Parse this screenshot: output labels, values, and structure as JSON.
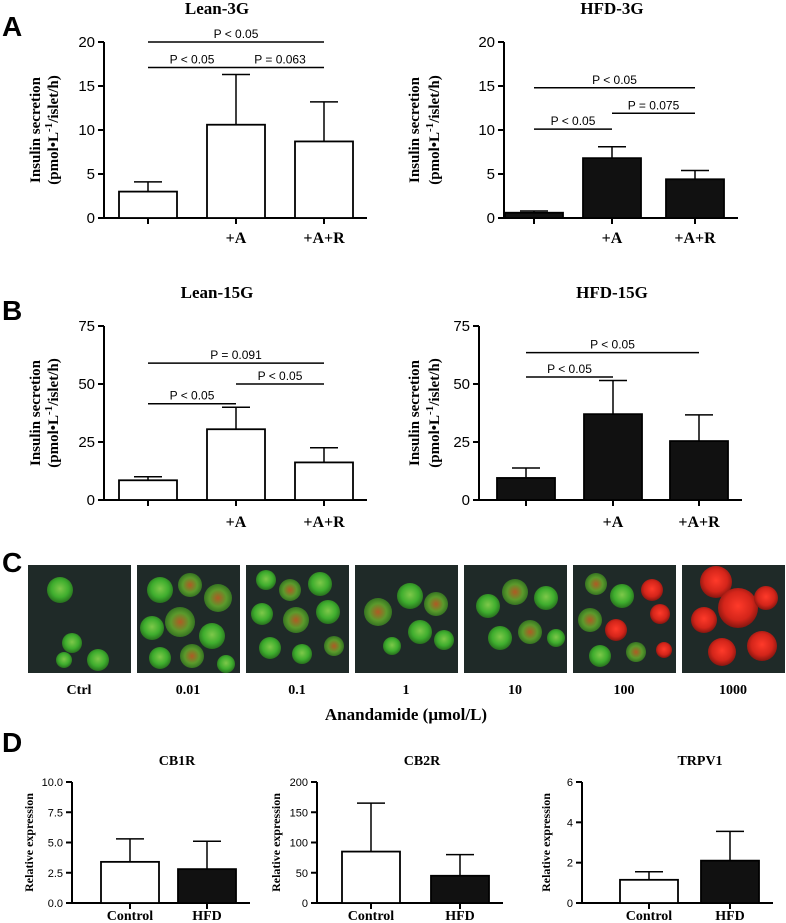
{
  "panel_labels": [
    "A",
    "B",
    "C",
    "D"
  ],
  "colors": {
    "control_bar": "#ffffff",
    "treated_bar": "#111111",
    "axis": "#000000",
    "micro_bg": "#1f2a28",
    "viable": "#3fae2e",
    "dead": "#c41e16"
  },
  "chart_data": [
    {
      "type": "bar",
      "panel": "A",
      "title": "Lean-3G",
      "categories": [
        "",
        "+A",
        "+A+R"
      ],
      "values": [
        3.0,
        10.6,
        8.7
      ],
      "errors": [
        1.1,
        5.7,
        4.5
      ],
      "ylim": [
        0,
        20
      ],
      "yticks": [
        "0",
        "5",
        "10",
        "15",
        "20"
      ],
      "ylabel_line1": "Insulin secretion",
      "ylabel_line2": "(pmol•L",
      "ylabel_sup": "-1",
      "ylabel_line2b": "/islet/h)",
      "bar_fill": "white",
      "annotations": [
        {
          "from": 0,
          "to": 2,
          "level": 20.0,
          "text": "P < 0.05"
        },
        {
          "from": 0,
          "to": 1,
          "level": 17.1,
          "text": "P < 0.05"
        },
        {
          "from": 1,
          "to": 2,
          "level": 17.1,
          "text": "P = 0.063"
        }
      ]
    },
    {
      "type": "bar",
      "panel": "A",
      "title": "HFD-3G",
      "categories": [
        "",
        "+A",
        "+A+R"
      ],
      "values": [
        0.6,
        6.8,
        4.4
      ],
      "errors": [
        0.2,
        1.3,
        1.0
      ],
      "ylim": [
        0,
        20
      ],
      "yticks": [
        "0",
        "5",
        "10",
        "15",
        "20"
      ],
      "ylabel_line1": "Insulin secretion",
      "ylabel_line2": "(pmol•L",
      "ylabel_sup": "-1",
      "ylabel_line2b": "/islet/h)",
      "bar_fill": "black",
      "annotations": [
        {
          "from": 0,
          "to": 2,
          "level": 14.8,
          "text": "P < 0.05"
        },
        {
          "from": 0,
          "to": 1,
          "level": 10.1,
          "text": "P < 0.05"
        },
        {
          "from": 1,
          "to": 2,
          "level": 11.9,
          "text": "P = 0.075"
        }
      ]
    },
    {
      "type": "bar",
      "panel": "B",
      "title": "Lean-15G",
      "categories": [
        "",
        "+A",
        "+A+R"
      ],
      "values": [
        8.5,
        30.5,
        16.2
      ],
      "errors": [
        1.5,
        9.5,
        6.3
      ],
      "ylim": [
        0,
        75
      ],
      "yticks": [
        "0",
        "25",
        "50",
        "75"
      ],
      "ylabel_line1": "Insulin secretion",
      "ylabel_line2": "(pmol•L",
      "ylabel_sup": "-1",
      "ylabel_line2b": "/islet/h)",
      "bar_fill": "white",
      "annotations": [
        {
          "from": 0,
          "to": 2,
          "level": 59.0,
          "text": "P = 0.091"
        },
        {
          "from": 0,
          "to": 1,
          "level": 41.5,
          "text": "P < 0.05"
        },
        {
          "from": 1,
          "to": 2,
          "level": 50.0,
          "text": "P < 0.05"
        }
      ]
    },
    {
      "type": "bar",
      "panel": "B",
      "title": "HFD-15G",
      "categories": [
        "",
        "+A",
        "+A+R"
      ],
      "values": [
        9.5,
        37.0,
        25.4
      ],
      "errors": [
        4.3,
        14.5,
        11.3
      ],
      "ylim": [
        0,
        75
      ],
      "yticks": [
        "0",
        "25",
        "50",
        "75"
      ],
      "ylabel_line1": "Insulin secretion",
      "ylabel_line2": "(pmol•L",
      "ylabel_sup": "-1",
      "ylabel_line2b": "/islet/h)",
      "bar_fill": "black",
      "annotations": [
        {
          "from": 0,
          "to": 2,
          "level": 63.5,
          "text": "P < 0.05"
        },
        {
          "from": 0,
          "to": 1,
          "level": 53.0,
          "text": "P < 0.05"
        }
      ]
    },
    {
      "type": "bar",
      "panel": "D",
      "title": "CB1R",
      "categories": [
        "Control",
        "HFD"
      ],
      "values": [
        3.4,
        2.8
      ],
      "errors": [
        1.9,
        2.3
      ],
      "ylim": [
        0,
        10
      ],
      "yticks": [
        "0.0",
        "2.5",
        "5.0",
        "7.5",
        "10.0"
      ],
      "ylabel_line1": "Relative expression",
      "bar_fill": [
        "white",
        "black"
      ],
      "annotations": []
    },
    {
      "type": "bar",
      "panel": "D",
      "title": "CB2R",
      "categories": [
        "Control",
        "HFD"
      ],
      "values": [
        85,
        45
      ],
      "errors": [
        80,
        35
      ],
      "ylim": [
        0,
        200
      ],
      "yticks": [
        "0",
        "50",
        "100",
        "150",
        "200"
      ],
      "ylabel_line1": "Relative expression",
      "bar_fill": [
        "white",
        "black"
      ],
      "annotations": []
    },
    {
      "type": "bar",
      "panel": "D",
      "title": "TRPV1",
      "categories": [
        "Control",
        "HFD"
      ],
      "values": [
        1.15,
        2.1
      ],
      "errors": [
        0.4,
        1.45
      ],
      "ylim": [
        0,
        6
      ],
      "yticks": [
        "0",
        "2",
        "4",
        "6"
      ],
      "ylabel_line1": "Relative expression",
      "bar_fill": [
        "white",
        "black"
      ],
      "annotations": []
    }
  ],
  "micrographs": {
    "labels": [
      "Ctrl",
      "0.01",
      "0.1",
      "1",
      "10",
      "100",
      "1000"
    ],
    "axis_title": "Anandamide (μmol/L)"
  }
}
